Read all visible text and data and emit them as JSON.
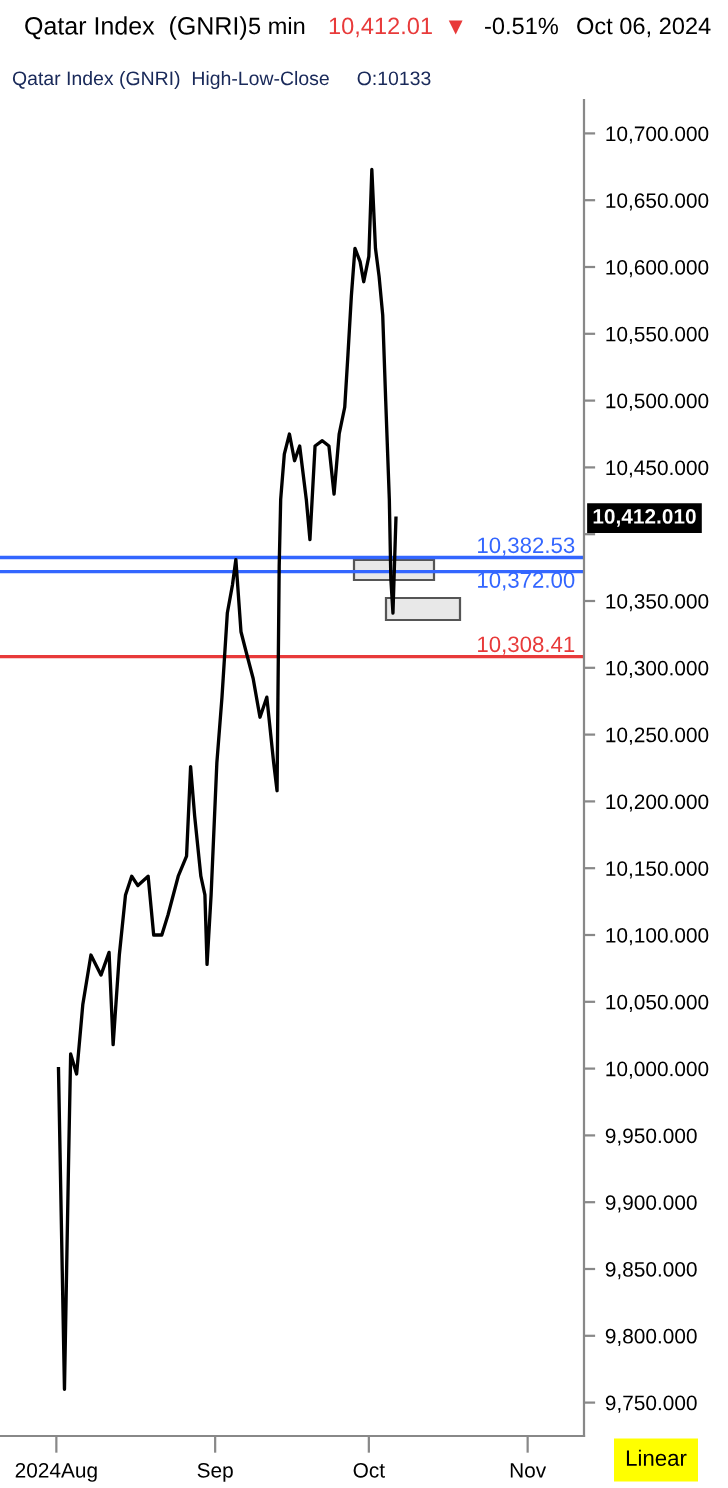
{
  "chart_data": {
    "type": "line",
    "title": "Qatar Index  (GNRI)",
    "subtitle": "Qatar Index (GNRI)  High-Low-Close     O:10133",
    "annotations": [
      "5 min",
      "10,412.01",
      "▼",
      "-0.51%",
      "Oct 06, 2024",
      "10,412.010",
      "Linear"
    ],
    "x": [
      "2024-08-01T10:00",
      "2024-08-02T14:00",
      "2024-08-03T10:00",
      "2024-08-03T19:00",
      "2024-08-04T23:00",
      "2024-08-06T04:00",
      "2024-08-07T18:00",
      "2024-08-09T17:00",
      "2024-08-11T07:00",
      "2024-08-12T02:00",
      "2024-08-13T07:00",
      "2024-08-14T12:00",
      "2024-08-15T17:00",
      "2024-08-16T22:00",
      "2024-08-18T22:00",
      "2024-08-20T00:00",
      "2024-08-21T14:00",
      "2024-08-22T19:00",
      "2024-08-24T19:00",
      "2024-08-26T10:00",
      "2024-08-27T05:00",
      "2024-08-28T00:00",
      "2024-08-29T05:00",
      "2024-08-30T00:00",
      "2024-08-30T10:00",
      "2024-08-31T05:00",
      "2024-09-01T08:00",
      "2024-09-02T08:00",
      "2024-09-03T09:00",
      "2024-09-04T09:00",
      "2024-09-05T01:00",
      "2024-09-06T01:00",
      "2024-09-07T01:00",
      "2024-09-08T10:00",
      "2024-09-09T18:00",
      "2024-09-11T02:00",
      "2024-09-12T10:00",
      "2024-09-13T02:00",
      "2024-09-13T12:00",
      "2024-09-13T19:00",
      "2024-09-14T12:00",
      "2024-09-15T12:00",
      "2024-09-16T12:00",
      "2024-09-17T12:00",
      "2024-09-18T19:00",
      "2024-09-19T12:00",
      "2024-09-20T12:00",
      "2024-09-21T22:00",
      "2024-09-23T05:00",
      "2024-09-24T05:00",
      "2024-09-25T05:00",
      "2024-09-26T07:00",
      "2024-09-26T22:00",
      "2024-09-27T14:00",
      "2024-09-28T07:00",
      "2024-09-29T07:00",
      "2024-09-30T00:00",
      "2024-10-01T00:00",
      "2024-10-01T14:00",
      "2024-10-02T07:00",
      "2024-10-03T00:00",
      "2024-10-03T17:00",
      "2024-10-04T07:00",
      "2024-10-05T00:00",
      "2024-10-05T07:00",
      "2024-10-05T17:00",
      "2024-10-06T00:00",
      "2024-10-06T07:00"
    ],
    "series": [
      {
        "color": "#000000",
        "values": [
          10000,
          9760,
          9937,
          10011,
          9996,
          10048,
          10085,
          10070,
          10087,
          10018,
          10085,
          10130,
          10144,
          10137,
          10144,
          10100,
          10100,
          10115,
          10144,
          10159,
          10226,
          10189,
          10144,
          10130,
          10078,
          10130,
          10229,
          10278,
          10341,
          10362,
          10381,
          10327,
          10312,
          10292,
          10263,
          10278,
          10229,
          10208,
          10376,
          10426,
          10460,
          10475,
          10455,
          10466,
          10426,
          10396,
          10466,
          10470,
          10466,
          10430,
          10475,
          10495,
          10534,
          10578,
          10614,
          10604,
          10589,
          10608,
          10673,
          10614,
          10593,
          10564,
          10500,
          10426,
          10367,
          10341,
          10377,
          10412
        ]
      }
    ],
    "xlim": [
      "2024-07-21",
      "2024-11-12"
    ],
    "xticks": [
      {
        "value": "2024-08-01",
        "label": "2024Aug"
      },
      {
        "value": "2024-09-01",
        "label": "Sep"
      },
      {
        "value": "2024-10-01",
        "label": "Oct"
      },
      {
        "value": "2024-11-01",
        "label": "Nov"
      }
    ],
    "ylim": [
      9725,
      10725
    ],
    "yticks": [
      {
        "value": 9750,
        "label": "9,750.000"
      },
      {
        "value": 9800,
        "label": "9,800.000"
      },
      {
        "value": 9850,
        "label": "9,850.000"
      },
      {
        "value": 9900,
        "label": "9,900.000"
      },
      {
        "value": 9950,
        "label": "9,950.000"
      },
      {
        "value": 10000,
        "label": "10,000.000"
      },
      {
        "value": 10050,
        "label": "10,050.000"
      },
      {
        "value": 10100,
        "label": "10,100.000"
      },
      {
        "value": 10150,
        "label": "10,150.000"
      },
      {
        "value": 10200,
        "label": "10,200.000"
      },
      {
        "value": 10250,
        "label": "10,250.000"
      },
      {
        "value": 10300,
        "label": "10,300.000"
      },
      {
        "value": 10350,
        "label": "10,350.000"
      },
      {
        "value": 10400,
        "label": null
      },
      {
        "value": 10450,
        "label": "10,450.000"
      },
      {
        "value": 10500,
        "label": "10,500.000"
      },
      {
        "value": 10550,
        "label": "10,550.000"
      },
      {
        "value": 10600,
        "label": "10,600.000"
      },
      {
        "value": 10650,
        "label": "10,650.000"
      },
      {
        "value": 10700,
        "label": "10,700.000"
      }
    ],
    "ref_lines": [
      {
        "axis": "y",
        "value": 10382.53,
        "label": "10,382.53",
        "color": "#3366ff"
      },
      {
        "axis": "y",
        "value": 10372.0,
        "label": "10,372.00",
        "color": "#3366ff"
      },
      {
        "axis": "y",
        "value": 10308.41,
        "label": "10,308.41",
        "color": "#e83a3a"
      }
    ],
    "grid": false,
    "legend": false,
    "marker": "none",
    "line_style": "solid"
  }
}
